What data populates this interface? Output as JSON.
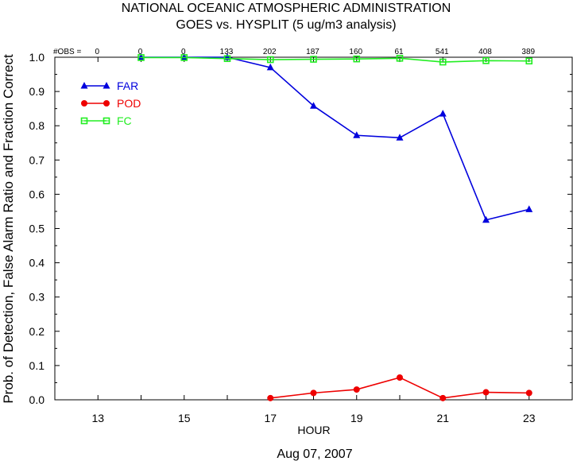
{
  "chart_data": {
    "type": "line",
    "title": "NATIONAL OCEANIC ATMOSPHERIC ADMINISTRATION",
    "subtitle": "GOES vs. HYSPLIT  (5 ug/m3 analysis)",
    "xlabel": "HOUR",
    "ylabel": "Prob. of Detection, False Alarm Ratio and Fraction Correct",
    "date_label": "Aug 07, 2007",
    "xlim": [
      12,
      24
    ],
    "ylim": [
      0,
      1.0
    ],
    "x_ticks": [
      13,
      15,
      17,
      19,
      21,
      23
    ],
    "y_ticks": [
      "0.0",
      "0.1",
      "0.2",
      "0.3",
      "0.4",
      "0.5",
      "0.6",
      "0.7",
      "0.8",
      "0.9",
      "1.0"
    ],
    "grid": false,
    "legend_position": "top-left",
    "obs_label": "#OBS =",
    "obs": [
      {
        "x": 13,
        "count": "0"
      },
      {
        "x": 14,
        "count": "0"
      },
      {
        "x": 15,
        "count": "0"
      },
      {
        "x": 16,
        "count": "133"
      },
      {
        "x": 17,
        "count": "202"
      },
      {
        "x": 18,
        "count": "187"
      },
      {
        "x": 19,
        "count": "160"
      },
      {
        "x": 20,
        "count": "61"
      },
      {
        "x": 21,
        "count": "541"
      },
      {
        "x": 22,
        "count": "408"
      },
      {
        "x": 23,
        "count": "389"
      }
    ],
    "series": [
      {
        "name": "FAR",
        "color": "#0000dd",
        "marker": "triangle",
        "points": [
          [
            14,
            1.0
          ],
          [
            15,
            1.0
          ],
          [
            16,
            1.0
          ],
          [
            17,
            0.97
          ],
          [
            18,
            0.858
          ],
          [
            19,
            0.772
          ],
          [
            20,
            0.765
          ],
          [
            21,
            0.835
          ],
          [
            22,
            0.525
          ],
          [
            23,
            0.556
          ]
        ]
      },
      {
        "name": "POD",
        "color": "#ee0000",
        "marker": "circle",
        "points": [
          [
            17,
            0.005
          ],
          [
            18,
            0.02
          ],
          [
            19,
            0.03
          ],
          [
            20,
            0.065
          ],
          [
            21,
            0.005
          ],
          [
            22,
            0.022
          ],
          [
            23,
            0.02
          ]
        ]
      },
      {
        "name": "FC",
        "color": "#22ee22",
        "marker": "square",
        "points": [
          [
            14,
            0.999
          ],
          [
            15,
            0.999
          ],
          [
            16,
            0.996
          ],
          [
            17,
            0.993
          ],
          [
            18,
            0.994
          ],
          [
            19,
            0.995
          ],
          [
            20,
            0.997
          ],
          [
            21,
            0.986
          ],
          [
            22,
            0.99
          ],
          [
            23,
            0.989
          ]
        ]
      }
    ]
  }
}
